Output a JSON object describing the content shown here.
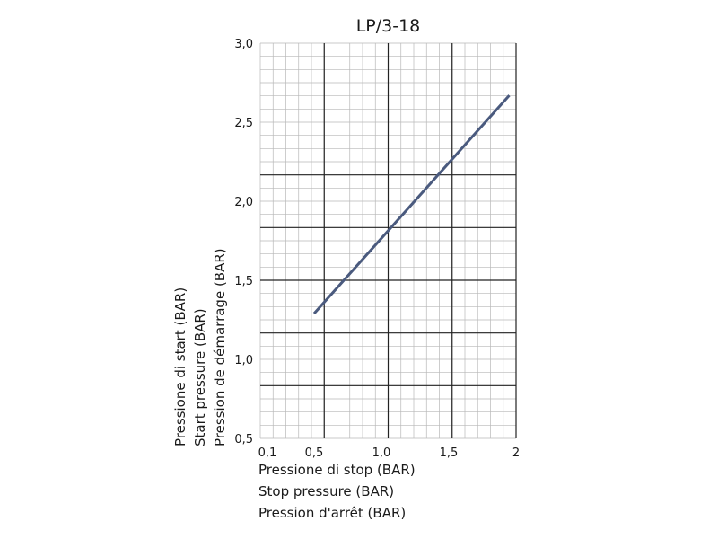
{
  "chart_data": {
    "type": "line",
    "title": "LP/3-18",
    "xlabel": [
      "Pressione di stop (BAR)",
      "Stop pressure (BAR)",
      "Pression d'arrêt  (BAR)"
    ],
    "ylabel": [
      "Pressione di start (BAR)",
      "Start pressure (BAR)",
      "Pression de démarrage (BAR)"
    ],
    "xlim": [
      0.1,
      2.0
    ],
    "ylim": [
      0.5,
      3.0
    ],
    "x_ticks": [
      0.1,
      0.5,
      1.0,
      1.5,
      2.0
    ],
    "x_tick_labels": [
      "0,1",
      "0,5",
      "1,0",
      "1,5",
      "2"
    ],
    "y_ticks": [
      0.5,
      1.0,
      1.5,
      2.0,
      2.5,
      3.0
    ],
    "y_tick_labels": [
      "0,5",
      "1,0",
      "1,5",
      "2,0",
      "2,5",
      "3,0"
    ],
    "grid": true,
    "series": [
      {
        "color": "#4a5a7e",
        "points": [
          {
            "x": 0.5,
            "y": 1.29
          },
          {
            "x": 1.95,
            "y": 2.67
          }
        ]
      }
    ]
  }
}
